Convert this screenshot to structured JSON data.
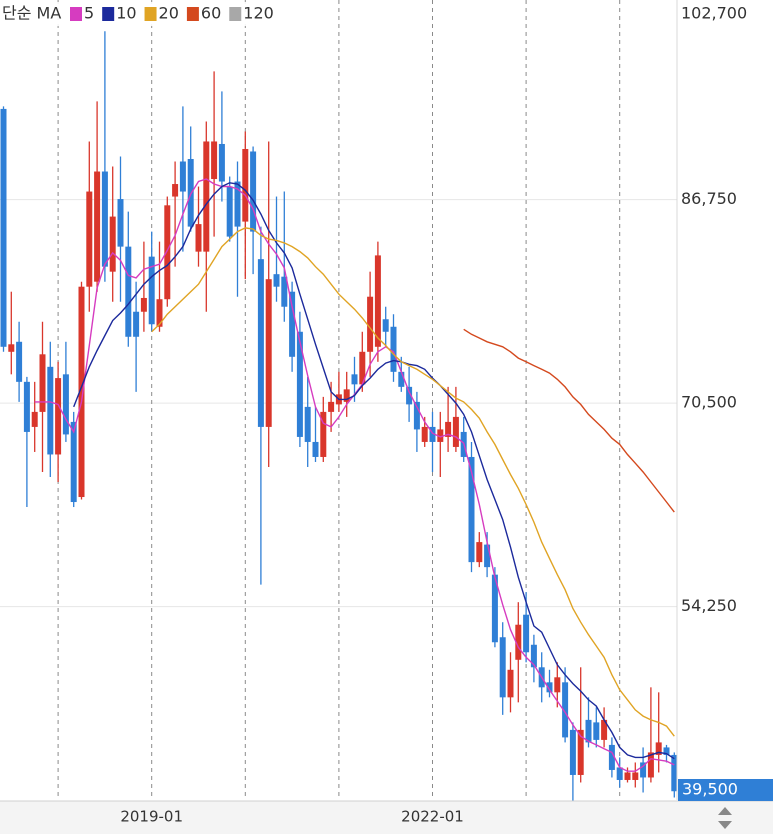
{
  "chart_data": {
    "type": "candlestick",
    "legend_title": "단순 MA",
    "categories": [
      null,
      null,
      null,
      null,
      null,
      null,
      null,
      null,
      null,
      null,
      null,
      null,
      null,
      null,
      null,
      null,
      null,
      null,
      null,
      "2019-01",
      null,
      null,
      null,
      null,
      null,
      null,
      null,
      null,
      null,
      null,
      null,
      null,
      null,
      null,
      null,
      null,
      null,
      null,
      null,
      null,
      null,
      null,
      null,
      null,
      null,
      null,
      null,
      null,
      null,
      null,
      null,
      null,
      null,
      null,
      null,
      "2022-01",
      null,
      null,
      null,
      null,
      null,
      null,
      null,
      null,
      null,
      null,
      null,
      null,
      null,
      null,
      null,
      null,
      null,
      null,
      null,
      null,
      null,
      null,
      null,
      null,
      null,
      null,
      null,
      null,
      null,
      null,
      null
    ],
    "up_color": "#d9362b",
    "down_color": "#2f7fd6",
    "open": [
      94000,
      74600,
      75400,
      72200,
      68600,
      69800,
      73400,
      66400,
      72800,
      69000,
      63000,
      79800,
      80200,
      89000,
      81000,
      86800,
      83000,
      77800,
      77800,
      82200,
      76600,
      78800,
      87000,
      89800,
      90000,
      82600,
      82600,
      88400,
      91200,
      87800,
      88200,
      85000,
      90600,
      82000,
      68600,
      80800,
      80600,
      79400,
      76200,
      70200,
      67400,
      66200,
      69800,
      70400,
      70600,
      72800,
      72000,
      74600,
      75000,
      77200,
      76600,
      73000,
      71800,
      70600,
      67400,
      68600,
      67400,
      67800,
      67000,
      68200,
      66200,
      57800,
      59200,
      56800,
      51800,
      47000,
      50000,
      53600,
      51200,
      49400,
      48200,
      47400,
      48200,
      44400,
      40800,
      45200,
      45000,
      43600,
      43200,
      41400,
      40400,
      40400,
      41800,
      40600,
      42400,
      43000,
      42400
    ],
    "high": [
      94200,
      79400,
      77000,
      72600,
      72200,
      77000,
      75400,
      73800,
      75400,
      69800,
      80200,
      91400,
      94600,
      100200,
      89400,
      90200,
      85800,
      80200,
      83400,
      84200,
      83400,
      87000,
      89800,
      94200,
      92600,
      87800,
      93000,
      97000,
      95400,
      88600,
      89800,
      92200,
      91000,
      84600,
      91400,
      87000,
      87400,
      80200,
      77800,
      72600,
      70200,
      71000,
      72200,
      73000,
      73000,
      74200,
      76200,
      81000,
      83400,
      78200,
      77600,
      74200,
      73400,
      71400,
      69400,
      69800,
      69800,
      71800,
      71800,
      69400,
      67400,
      60200,
      60200,
      57400,
      53000,
      50600,
      54600,
      55400,
      52000,
      50600,
      49200,
      49800,
      49400,
      45000,
      49400,
      47000,
      46200,
      46200,
      43800,
      42200,
      41400,
      41800,
      43000,
      47800,
      47400,
      43200,
      42600
    ],
    "low": [
      74600,
      72800,
      70600,
      62200,
      66600,
      65000,
      64600,
      64200,
      67400,
      62200,
      62800,
      77800,
      79400,
      80200,
      78600,
      78600,
      75000,
      71400,
      76200,
      76200,
      76200,
      78200,
      81400,
      82600,
      84200,
      81400,
      77800,
      83800,
      86600,
      83400,
      79000,
      80400,
      80800,
      56000,
      65400,
      78600,
      77000,
      73000,
      67000,
      65400,
      65800,
      65800,
      68200,
      69800,
      69400,
      70600,
      71400,
      72600,
      73800,
      75000,
      72200,
      71400,
      69000,
      66600,
      67000,
      65000,
      64600,
      66600,
      66600,
      65800,
      57000,
      57400,
      56600,
      51000,
      45600,
      45800,
      46600,
      49800,
      48200,
      46600,
      47000,
      46200,
      43400,
      38600,
      40200,
      43000,
      43000,
      43000,
      40600,
      39800,
      40200,
      39800,
      39400,
      40200,
      41000,
      41800,
      39000
    ],
    "close": [
      75000,
      75200,
      72200,
      68200,
      69800,
      74400,
      66400,
      72500,
      68000,
      62600,
      79800,
      87400,
      89000,
      81400,
      85400,
      83000,
      75800,
      75800,
      78900,
      76800,
      78800,
      86300,
      88000,
      87400,
      84600,
      84800,
      91400,
      91400,
      88200,
      83800,
      84600,
      90800,
      84200,
      68600,
      80400,
      79800,
      78200,
      74200,
      67800,
      67400,
      66200,
      69800,
      70600,
      71200,
      71600,
      72000,
      74600,
      79000,
      82300,
      76200,
      73000,
      71800,
      70400,
      68400,
      68600,
      67400,
      68400,
      69000,
      69400,
      66200,
      57800,
      59400,
      57400,
      51400,
      47000,
      49200,
      52800,
      50600,
      49400,
      47800,
      47400,
      48600,
      43800,
      40800,
      44400,
      43400,
      43600,
      45200,
      41200,
      40400,
      41000,
      41000,
      40600,
      42600,
      43400,
      42400,
      39500
    ],
    "series": [
      {
        "name": "5",
        "color": "#d63cc0",
        "values": [
          null,
          null,
          null,
          null,
          70600,
          70600,
          70600,
          70400,
          69200,
          68200,
          70600,
          75100,
          79700,
          81600,
          82500,
          81900,
          80700,
          80500,
          81200,
          81400,
          81600,
          82700,
          83900,
          85600,
          87200,
          88200,
          88400,
          88000,
          87800,
          87800,
          87600,
          87100,
          86000,
          84200,
          83200,
          82400,
          81300,
          78200,
          75400,
          72700,
          70200,
          68900,
          68600,
          69400,
          70400,
          71200,
          72000,
          73600,
          74600,
          75000,
          74600,
          73000,
          71400,
          70200,
          69000,
          68100,
          67800,
          68000,
          67800,
          67300,
          65000,
          62400,
          59400,
          56600,
          54400,
          52400,
          51000,
          50200,
          49600,
          48600,
          47600,
          46700,
          45800,
          44800,
          43900,
          43500,
          43200,
          42900,
          42600,
          41400,
          41100,
          41100,
          41500,
          42100,
          42000,
          41900,
          41600
        ]
      },
      {
        "name": "10",
        "color": "#1c2a9c",
        "values": [
          null,
          null,
          null,
          null,
          null,
          null,
          null,
          null,
          null,
          70200,
          71800,
          73400,
          74700,
          75900,
          77100,
          77700,
          78400,
          79200,
          80000,
          80600,
          81100,
          81500,
          82200,
          83000,
          84400,
          85500,
          86400,
          87200,
          87800,
          88100,
          88000,
          87500,
          86700,
          85600,
          84300,
          83300,
          82500,
          81300,
          79200,
          77200,
          75200,
          73300,
          71400,
          70800,
          70800,
          71100,
          71900,
          72500,
          73200,
          73700,
          73900,
          73800,
          73600,
          73500,
          73200,
          72500,
          71900,
          71200,
          70500,
          69600,
          68200,
          66300,
          64400,
          62800,
          61200,
          59000,
          56600,
          54600,
          52700,
          52200,
          50900,
          49600,
          48800,
          48100,
          47500,
          46800,
          46300,
          45200,
          44200,
          43000,
          42400,
          42200,
          42200,
          42400,
          42600,
          42500,
          42100
        ]
      },
      {
        "name": "20",
        "color": "#e0a424",
        "values": [
          null,
          null,
          null,
          null,
          null,
          null,
          null,
          null,
          null,
          null,
          null,
          null,
          null,
          null,
          null,
          null,
          null,
          null,
          null,
          76200,
          76800,
          77600,
          78200,
          78800,
          79400,
          80000,
          81000,
          82000,
          83000,
          83600,
          84200,
          84500,
          84400,
          83900,
          83600,
          83500,
          83300,
          83000,
          82600,
          82100,
          81400,
          80800,
          80000,
          79200,
          78600,
          78000,
          77300,
          76500,
          75700,
          75100,
          74400,
          73800,
          73500,
          73200,
          72800,
          72400,
          71900,
          71400,
          70900,
          70600,
          70000,
          69300,
          68200,
          67200,
          66000,
          64800,
          63700,
          62400,
          61000,
          59400,
          58100,
          56800,
          55600,
          54100,
          53000,
          52000,
          51100,
          50200,
          48800,
          47600,
          46800,
          46000,
          45500,
          45200,
          45000,
          44700,
          43900
        ]
      },
      {
        "name": "60",
        "color": "#d4491e",
        "values": [
          null,
          null,
          null,
          null,
          null,
          null,
          null,
          null,
          null,
          null,
          null,
          null,
          null,
          null,
          null,
          null,
          null,
          null,
          null,
          null,
          null,
          null,
          null,
          null,
          null,
          null,
          null,
          null,
          null,
          null,
          null,
          null,
          null,
          null,
          null,
          null,
          null,
          null,
          null,
          null,
          null,
          null,
          null,
          null,
          null,
          null,
          null,
          null,
          null,
          null,
          null,
          null,
          null,
          null,
          null,
          null,
          null,
          null,
          null,
          76400,
          76000,
          75700,
          75400,
          75200,
          75000,
          74600,
          74100,
          73800,
          73500,
          73200,
          72900,
          72400,
          71800,
          71000,
          70400,
          69600,
          69000,
          68400,
          67700,
          67200,
          66400,
          65700,
          65000,
          64200,
          63400,
          62600,
          61800
        ]
      },
      {
        "name": "120",
        "color": "#a8a8a8",
        "values": [
          null,
          null,
          null,
          null,
          null,
          null,
          null,
          null,
          null,
          null,
          null,
          null,
          null,
          null,
          null,
          null,
          null,
          null,
          null,
          null,
          null,
          null,
          null,
          null,
          null,
          null,
          null,
          null,
          null,
          null,
          null,
          null,
          null,
          null,
          null,
          null,
          null,
          null,
          null,
          null,
          null,
          null,
          null,
          null,
          null,
          null,
          null,
          null,
          null,
          null,
          null,
          null,
          null,
          null,
          null,
          null,
          null,
          null,
          null,
          null,
          null,
          null,
          null,
          null,
          null,
          null,
          null,
          null,
          null,
          null,
          null,
          null,
          null,
          null,
          null,
          null,
          null,
          null,
          null,
          null,
          null,
          null,
          null,
          null,
          null,
          null,
          null
        ]
      }
    ],
    "ylim": [
      38800,
      102700
    ],
    "yticks": [
      {
        "value": 54250,
        "label": "54,250"
      },
      {
        "value": 70500,
        "label": "70,500"
      },
      {
        "value": 86750,
        "label": "86,750"
      },
      {
        "value": 102700,
        "label": "102,700"
      }
    ],
    "grid": true,
    "price_marker": {
      "value": 39500,
      "label": "39,500"
    }
  }
}
